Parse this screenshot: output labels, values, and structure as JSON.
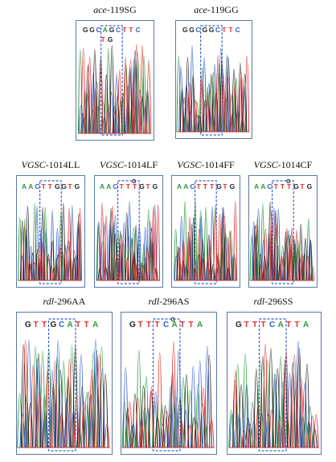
{
  "panels": [
    {
      "id": "ace-119SG",
      "gene": "ace",
      "suffix": "-119SG",
      "seq": [
        "G",
        "G",
        "C",
        "A",
        "G",
        "C",
        "T",
        "T",
        "C"
      ],
      "seq2": [
        "T",
        "G"
      ],
      "seq2_start": 3
    },
    {
      "id": "ace-119GG",
      "gene": "ace",
      "suffix": "-119GG",
      "seq": [
        "G",
        "G",
        "C",
        "G",
        "G",
        "C",
        "T",
        "T",
        "C"
      ]
    },
    {
      "id": "VGSC-1014LL",
      "gene": "VGSC",
      "suffix": "-1014LL",
      "seq": [
        "A",
        "A",
        "C",
        "T",
        "T",
        "G",
        "G",
        "T",
        "G"
      ]
    },
    {
      "id": "VGSC-1014LF",
      "gene": "VGSC",
      "suffix": "-1014LF",
      "seq": [
        "A",
        "A",
        "C",
        "T",
        "T",
        "T",
        "G",
        "T",
        "G"
      ],
      "top_letter": "G"
    },
    {
      "id": "VGSC-1014FF",
      "gene": "VGSC",
      "suffix": "-1014FF",
      "seq": [
        "A",
        "A",
        "C",
        "T",
        "T",
        "T",
        "G",
        "T",
        "G"
      ]
    },
    {
      "id": "VGSC-1014CF",
      "gene": "VGSC",
      "suffix": "-1014CF",
      "seq": [
        "A",
        "A",
        "C",
        "T",
        "T",
        "T",
        "G",
        "T",
        "G"
      ],
      "top_letter": "G"
    },
    {
      "id": "rdl-296AA",
      "gene": "rdl",
      "suffix": "-296AA",
      "seq": [
        "G",
        "T",
        "T",
        "G",
        "C",
        "A",
        "T",
        "T",
        "A"
      ]
    },
    {
      "id": "rdl-296AS",
      "gene": "rdl",
      "suffix": "-296AS",
      "seq": [
        "G",
        "T",
        "T",
        "T",
        "C",
        "A",
        "T",
        "T",
        "A"
      ],
      "top_letter": "G"
    },
    {
      "id": "rdl-296SS",
      "gene": "rdl",
      "suffix": "-296SS",
      "seq": [
        "G",
        "T",
        "T",
        "T",
        "C",
        "A",
        "T",
        "T",
        "A"
      ]
    }
  ],
  "base_colors": {
    "A": "#2e9a3c",
    "C": "#2f5fc8",
    "G": "#222222",
    "T": "#e0302d"
  },
  "frame_color": "#5a78a8",
  "highlight_color": "#2f5fc8"
}
